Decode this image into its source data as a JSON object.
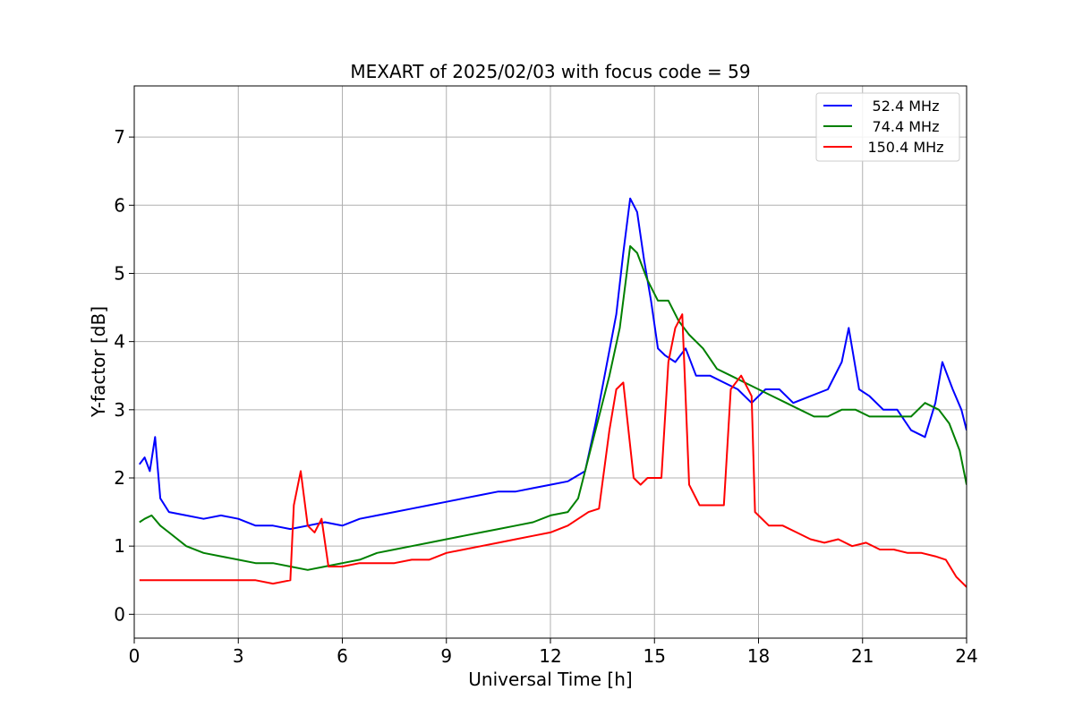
{
  "chart_data": {
    "type": "line",
    "title": "MEXART of 2025/02/03 with focus code = 59",
    "xlabel": "Universal Time [h]",
    "ylabel": "Y-factor [dB]",
    "xlim": [
      0,
      24
    ],
    "ylim": [
      -0.35,
      7.75
    ],
    "xticks": [
      0,
      3,
      6,
      9,
      12,
      15,
      18,
      21,
      24
    ],
    "yticks": [
      0,
      1,
      2,
      3,
      4,
      5,
      6,
      7
    ],
    "grid": true,
    "legend_position": "top-right",
    "series": [
      {
        "name": "52.4 MHz",
        "color": "#0000ff",
        "x": [
          0.15,
          0.3,
          0.45,
          0.6,
          0.75,
          1.0,
          1.5,
          2.0,
          2.5,
          3.0,
          3.5,
          4.0,
          4.5,
          5.0,
          5.5,
          6.0,
          6.5,
          7.0,
          7.5,
          8.0,
          8.5,
          9.0,
          9.5,
          10.0,
          10.5,
          11.0,
          11.5,
          12.0,
          12.5,
          13.0,
          13.3,
          13.6,
          13.9,
          14.1,
          14.3,
          14.5,
          14.7,
          14.9,
          15.1,
          15.3,
          15.6,
          15.9,
          16.2,
          16.6,
          17.0,
          17.4,
          17.8,
          18.2,
          18.6,
          19.0,
          19.5,
          20.0,
          20.4,
          20.6,
          20.9,
          21.2,
          21.6,
          22.0,
          22.4,
          22.8,
          23.1,
          23.3,
          23.6,
          23.85,
          24.0
        ],
        "y": [
          2.2,
          2.3,
          2.1,
          2.6,
          1.7,
          1.5,
          1.45,
          1.4,
          1.45,
          1.4,
          1.3,
          1.3,
          1.25,
          1.3,
          1.35,
          1.3,
          1.4,
          1.45,
          1.5,
          1.55,
          1.6,
          1.65,
          1.7,
          1.75,
          1.8,
          1.8,
          1.85,
          1.9,
          1.95,
          2.1,
          2.8,
          3.6,
          4.4,
          5.3,
          6.1,
          5.9,
          5.2,
          4.6,
          3.9,
          3.8,
          3.7,
          3.9,
          3.5,
          3.5,
          3.4,
          3.3,
          3.1,
          3.3,
          3.3,
          3.1,
          3.2,
          3.3,
          3.7,
          4.2,
          3.3,
          3.2,
          3.0,
          3.0,
          2.7,
          2.6,
          3.1,
          3.7,
          3.3,
          3.0,
          2.7
        ]
      },
      {
        "name": "74.4 MHz",
        "color": "#008000",
        "x": [
          0.15,
          0.3,
          0.5,
          0.75,
          1.0,
          1.5,
          2.0,
          2.5,
          3.0,
          3.5,
          4.0,
          4.5,
          5.0,
          5.5,
          6.0,
          6.5,
          7.0,
          7.5,
          8.0,
          8.5,
          9.0,
          9.5,
          10.0,
          10.5,
          11.0,
          11.5,
          12.0,
          12.5,
          12.8,
          13.1,
          13.4,
          13.7,
          14.0,
          14.3,
          14.5,
          14.8,
          15.1,
          15.4,
          15.7,
          16.0,
          16.4,
          16.8,
          17.2,
          17.6,
          18.0,
          18.4,
          18.8,
          19.2,
          19.6,
          20.0,
          20.4,
          20.8,
          21.2,
          21.6,
          22.0,
          22.4,
          22.8,
          23.2,
          23.5,
          23.8,
          24.0
        ],
        "y": [
          1.35,
          1.4,
          1.45,
          1.3,
          1.2,
          1.0,
          0.9,
          0.85,
          0.8,
          0.75,
          0.75,
          0.7,
          0.65,
          0.7,
          0.75,
          0.8,
          0.9,
          0.95,
          1.0,
          1.05,
          1.1,
          1.15,
          1.2,
          1.25,
          1.3,
          1.35,
          1.45,
          1.5,
          1.7,
          2.3,
          2.9,
          3.5,
          4.2,
          5.4,
          5.3,
          4.9,
          4.6,
          4.6,
          4.3,
          4.1,
          3.9,
          3.6,
          3.5,
          3.4,
          3.3,
          3.2,
          3.1,
          3.0,
          2.9,
          2.9,
          3.0,
          3.0,
          2.9,
          2.9,
          2.9,
          2.9,
          3.1,
          3.0,
          2.8,
          2.4,
          1.9
        ]
      },
      {
        "name": "150.4 MHz",
        "color": "#ff0000",
        "x": [
          0.15,
          0.5,
          1.0,
          1.5,
          2.0,
          2.5,
          3.0,
          3.5,
          4.0,
          4.5,
          4.6,
          4.8,
          5.0,
          5.2,
          5.4,
          5.6,
          6.0,
          6.5,
          7.0,
          7.5,
          8.0,
          8.5,
          9.0,
          9.5,
          10.0,
          10.5,
          11.0,
          11.5,
          12.0,
          12.5,
          12.8,
          13.1,
          13.4,
          13.7,
          13.9,
          14.1,
          14.4,
          14.6,
          14.8,
          15.0,
          15.2,
          15.4,
          15.6,
          15.8,
          16.0,
          16.3,
          16.6,
          17.0,
          17.2,
          17.5,
          17.8,
          17.9,
          18.3,
          18.7,
          19.1,
          19.5,
          19.9,
          20.3,
          20.7,
          21.1,
          21.5,
          21.9,
          22.3,
          22.7,
          23.1,
          23.4,
          23.7,
          24.0
        ],
        "y": [
          0.5,
          0.5,
          0.5,
          0.5,
          0.5,
          0.5,
          0.5,
          0.5,
          0.45,
          0.5,
          1.6,
          2.1,
          1.3,
          1.2,
          1.4,
          0.7,
          0.7,
          0.75,
          0.75,
          0.75,
          0.8,
          0.8,
          0.9,
          0.95,
          1.0,
          1.05,
          1.1,
          1.15,
          1.2,
          1.3,
          1.4,
          1.5,
          1.55,
          2.7,
          3.3,
          3.4,
          2.0,
          1.9,
          2.0,
          2.0,
          2.0,
          3.7,
          4.2,
          4.4,
          1.9,
          1.6,
          1.6,
          1.6,
          3.3,
          3.5,
          3.2,
          1.5,
          1.3,
          1.3,
          1.2,
          1.1,
          1.05,
          1.1,
          1.0,
          1.05,
          0.95,
          0.95,
          0.9,
          0.9,
          0.85,
          0.8,
          0.55,
          0.4
        ]
      }
    ]
  }
}
